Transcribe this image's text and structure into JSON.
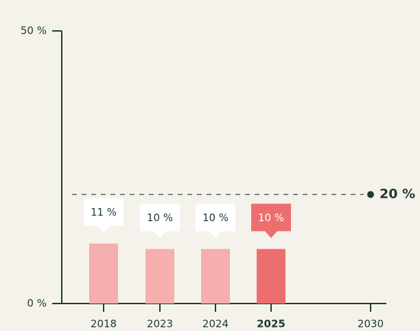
{
  "chart_data": {
    "type": "bar",
    "categories": [
      "2018",
      "2023",
      "2024",
      "2025",
      "2030"
    ],
    "values": [
      11,
      10,
      10,
      10,
      null
    ],
    "value_labels": [
      "11 %",
      "10 %",
      "10 %",
      "10 %",
      null
    ],
    "color": "#f4afae",
    "highlight": "2025",
    "highlight_color": "#ec6e6f",
    "ylim": [
      0,
      50
    ],
    "yticks": [
      {
        "value": 0,
        "label": "0 %"
      },
      {
        "value": 50,
        "label": "50 %"
      }
    ],
    "target": {
      "value": 20,
      "label": "20 %"
    },
    "grid": false
  }
}
